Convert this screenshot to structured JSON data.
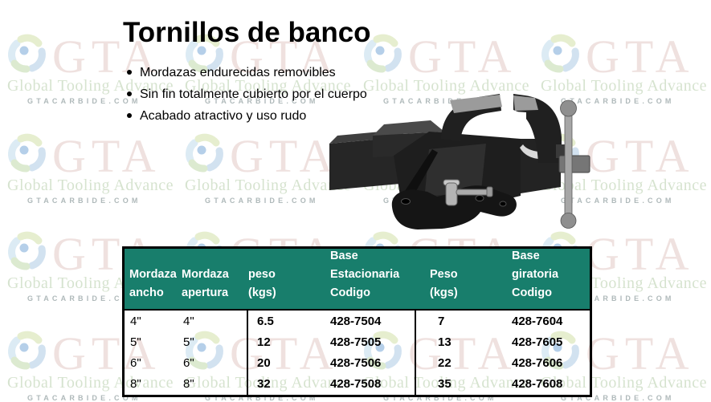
{
  "page_title": "Tornillos de banco",
  "features": [
    "Mordazas endurecidas removibles",
    "Sin fin totalmente cubierto por el cuerpo",
    "Acabado atractivo y uso rudo"
  ],
  "watermark": {
    "brand": "GTA",
    "tagline": "Global Tooling Advance",
    "domain": "GTACARBIDE.COM"
  },
  "colors": {
    "table_header_bg": "#187e6c",
    "table_header_text": "#ffffff",
    "table_border": "#000000"
  },
  "table": {
    "headers": [
      "Mordaza\nancho",
      "Mordaza\napertura",
      "peso\n(kgs)",
      "Base\nEstacionaria\nCodigo",
      "Peso\n(kgs)",
      "Base\ngiratoria\nCodigo"
    ],
    "rows": [
      [
        "4\"",
        "4\"",
        "6.5",
        "428-7504",
        "7",
        "428-7604"
      ],
      [
        "5\"",
        "5\"",
        "12",
        "428-7505",
        "13",
        "428-7605"
      ],
      [
        "6\"",
        "6\"",
        "20",
        "428-7506",
        "22",
        "428-7606"
      ],
      [
        "8\"",
        "8\"",
        "32",
        "428-7508",
        "35",
        "428-7608"
      ]
    ]
  }
}
